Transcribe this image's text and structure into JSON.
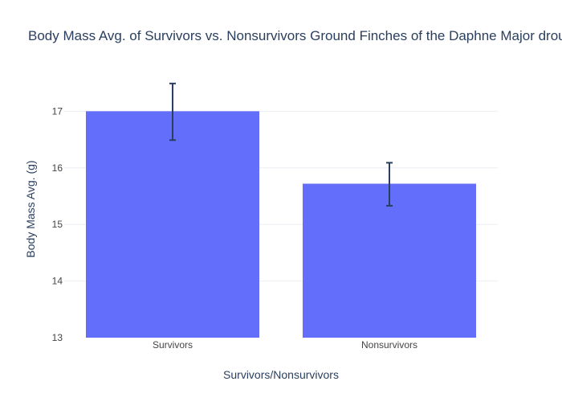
{
  "chart_data": {
    "type": "bar",
    "title": "Body Mass Avg. of Survivors vs. Nonsurvivors Ground Finches of the Daphne Major drought",
    "xlabel": "Survivors/Nonsurvivors",
    "ylabel": "Body Mass Avg. (g)",
    "categories": [
      "Survivors",
      "Nonsurvivors"
    ],
    "values": [
      17.0,
      15.72
    ],
    "error_upper": [
      17.49,
      16.09
    ],
    "error_lower": [
      16.49,
      15.33
    ],
    "ylim": [
      13,
      17.9
    ],
    "yticks": [
      13,
      14,
      15,
      16,
      17
    ],
    "grid": true,
    "legend": "none"
  },
  "colors": {
    "bar": "#636efa",
    "error_bar": "#2a3f5f",
    "grid": "#ebeef3",
    "text": "#2a3f5f",
    "tick_text": "#444444"
  }
}
